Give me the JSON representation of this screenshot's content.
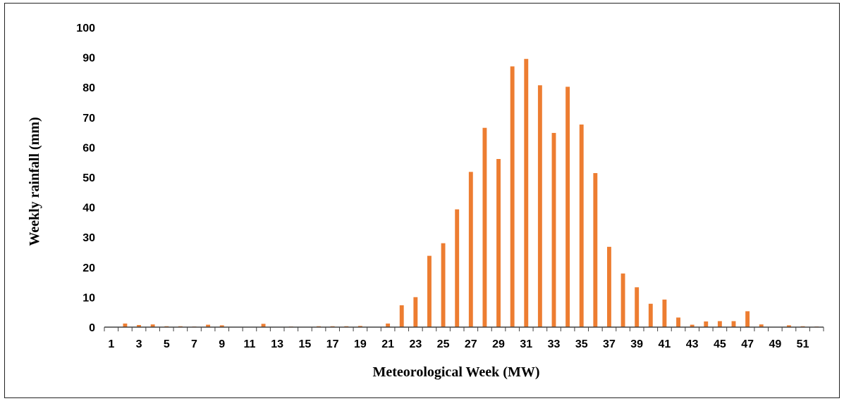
{
  "chart_data": {
    "type": "bar",
    "xlabel": "Meteorological Week (MW)",
    "ylabel": "Weekly rainfall  (mm)",
    "ylim": [
      0,
      100
    ],
    "yticks": [
      0,
      10,
      20,
      30,
      40,
      50,
      60,
      70,
      80,
      90,
      100
    ],
    "xtick_labels": [
      "1",
      "3",
      "5",
      "7",
      "9",
      "11",
      "13",
      "15",
      "17",
      "19",
      "21",
      "23",
      "25",
      "27",
      "29",
      "31",
      "33",
      "35",
      "37",
      "39",
      "41",
      "43",
      "45",
      "47",
      "49",
      "51"
    ],
    "grid": false,
    "legend": "none",
    "bar_color": "#ED7D31",
    "x": [
      1,
      2,
      3,
      4,
      5,
      6,
      7,
      8,
      9,
      10,
      11,
      12,
      13,
      14,
      15,
      16,
      17,
      18,
      19,
      20,
      21,
      22,
      23,
      24,
      25,
      26,
      27,
      28,
      29,
      30,
      31,
      32,
      33,
      34,
      35,
      36,
      37,
      38,
      39,
      40,
      41,
      42,
      43,
      44,
      45,
      46,
      47,
      48,
      49,
      50,
      51,
      52
    ],
    "values": [
      0,
      1.2,
      0.7,
      0.9,
      0.3,
      0.3,
      0.2,
      0.8,
      0.6,
      0,
      0,
      1.1,
      0,
      0.2,
      0,
      0.3,
      0.3,
      0.3,
      0.4,
      0,
      1.2,
      7.3,
      10,
      23.8,
      28,
      39.3,
      51.8,
      66.5,
      56.1,
      87,
      89.5,
      80.7,
      64.8,
      80.2,
      67.6,
      51.4,
      26.8,
      17.9,
      13.3,
      7.8,
      9.2,
      3.2,
      0.8,
      1.9,
      2,
      2,
      5.3,
      0.9,
      0,
      0.6,
      0.3,
      0.2
    ]
  }
}
